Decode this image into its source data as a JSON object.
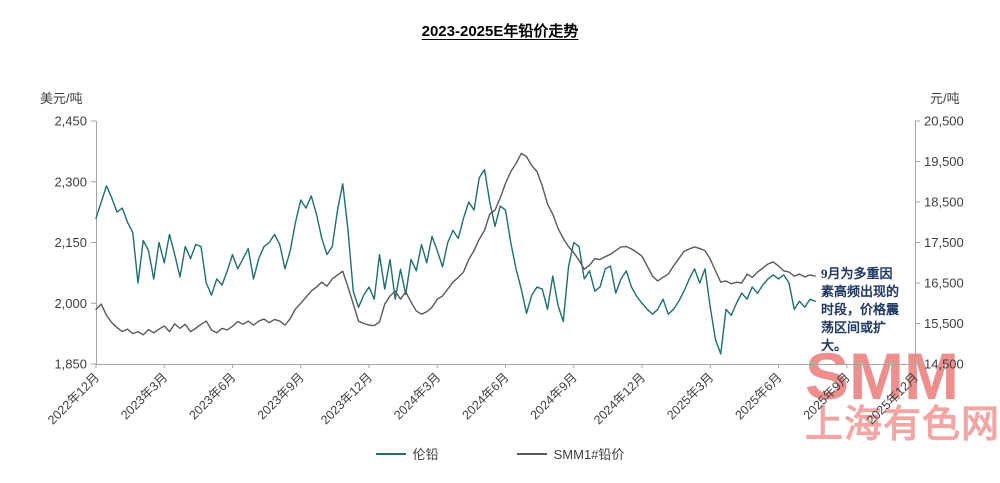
{
  "title": "2023-2025E年铅价走势",
  "left_axis": {
    "unit": "美元/吨",
    "min": 1850,
    "max": 2450,
    "ticks": [
      2450,
      2300,
      2150,
      2000,
      1850
    ]
  },
  "right_axis": {
    "unit": "元/吨",
    "min": 14500,
    "max": 20500,
    "ticks": [
      20500,
      19500,
      18500,
      17500,
      16500,
      15500,
      14500
    ]
  },
  "x_axis": {
    "labels": [
      "2022年12月",
      "2023年3月",
      "2023年6月",
      "2023年9月",
      "2023年12月",
      "2024年3月",
      "2024年6月",
      "2024年9月",
      "2024年12月",
      "2025年3月",
      "2025年6月",
      "2025年9月",
      "2025年12月"
    ],
    "points_per_label": 13,
    "total_points": 157
  },
  "annotation": {
    "text": "9月为多重因素高频出现的时段，价格震荡区间或扩大。",
    "color": "#1F3864"
  },
  "watermark": {
    "line1": "SMM",
    "line2": "上海有色网",
    "color1": "#EC8F8D",
    "color2": "#F2A6A4"
  },
  "chart_data": {
    "type": "line",
    "title": "2023-2025E年铅价走势",
    "x_frequency": "weekly",
    "x_range": "2022年12月 - 2025年7月 (实际数据), 坐标轴延伸至2025年12月",
    "grid": false,
    "legend_position": "bottom",
    "left_ylim": [
      1850,
      2450
    ],
    "right_ylim": [
      14500,
      20500
    ],
    "series": [
      {
        "name": "伦铅",
        "axis": "left",
        "unit": "美元/吨",
        "color": "#1E6E74",
        "values": [
          2210,
          2250,
          2290,
          2260,
          2225,
          2235,
          2200,
          2175,
          2050,
          2155,
          2130,
          2060,
          2150,
          2100,
          2170,
          2120,
          2065,
          2140,
          2110,
          2145,
          2140,
          2050,
          2020,
          2060,
          2045,
          2080,
          2120,
          2085,
          2110,
          2135,
          2060,
          2110,
          2140,
          2150,
          2170,
          2145,
          2085,
          2130,
          2200,
          2255,
          2235,
          2265,
          2220,
          2160,
          2120,
          2140,
          2230,
          2295,
          2180,
          2030,
          1990,
          2020,
          2040,
          2010,
          2120,
          2035,
          2108,
          2010,
          2084,
          2022,
          2108,
          2080,
          2145,
          2100,
          2165,
          2130,
          2090,
          2150,
          2180,
          2160,
          2210,
          2250,
          2230,
          2310,
          2330,
          2250,
          2190,
          2240,
          2230,
          2150,
          2085,
          2035,
          1975,
          2020,
          2040,
          2035,
          1985,
          2067,
          1995,
          1955,
          2090,
          2150,
          2140,
          2060,
          2080,
          2030,
          2040,
          2085,
          2092,
          2025,
          2060,
          2080,
          2040,
          2017,
          2000,
          1985,
          1973,
          1985,
          2010,
          1973,
          1985,
          2005,
          2030,
          2060,
          2085,
          2050,
          2085,
          1990,
          1910,
          1875,
          1985,
          1970,
          2000,
          2025,
          2010,
          2040,
          2025,
          2045,
          2060,
          2070,
          2060,
          2070,
          2050,
          1985,
          2005,
          1990,
          2010,
          2005
        ]
      },
      {
        "name": "SMM1#铅价",
        "axis": "right",
        "unit": "元/吨",
        "color": "#595959",
        "values": [
          15850,
          15980,
          15700,
          15520,
          15400,
          15300,
          15360,
          15250,
          15300,
          15220,
          15350,
          15270,
          15360,
          15440,
          15300,
          15490,
          15380,
          15480,
          15300,
          15380,
          15480,
          15560,
          15340,
          15270,
          15380,
          15340,
          15430,
          15550,
          15480,
          15560,
          15460,
          15560,
          15610,
          15520,
          15600,
          15560,
          15460,
          15620,
          15860,
          16000,
          16150,
          16300,
          16400,
          16520,
          16420,
          16600,
          16700,
          16790,
          16400,
          15980,
          15560,
          15500,
          15460,
          15450,
          15540,
          15980,
          16180,
          16300,
          16100,
          16280,
          16030,
          15810,
          15730,
          15790,
          15900,
          16100,
          16180,
          16350,
          16520,
          16640,
          16770,
          17080,
          17300,
          17580,
          17800,
          18200,
          18300,
          18600,
          18960,
          19250,
          19450,
          19700,
          19620,
          19400,
          19250,
          18900,
          18450,
          18200,
          17850,
          17600,
          17400,
          17250,
          17060,
          16840,
          16940,
          17100,
          17080,
          17150,
          17210,
          17300,
          17390,
          17400,
          17340,
          17260,
          17160,
          16920,
          16670,
          16550,
          16640,
          16720,
          16920,
          17100,
          17280,
          17340,
          17390,
          17350,
          17300,
          17090,
          16800,
          16520,
          16550,
          16480,
          16520,
          16500,
          16720,
          16640,
          16770,
          16870,
          16970,
          17020,
          16920,
          16800,
          16770,
          16670,
          16720,
          16650,
          16700,
          16670
        ]
      }
    ]
  }
}
